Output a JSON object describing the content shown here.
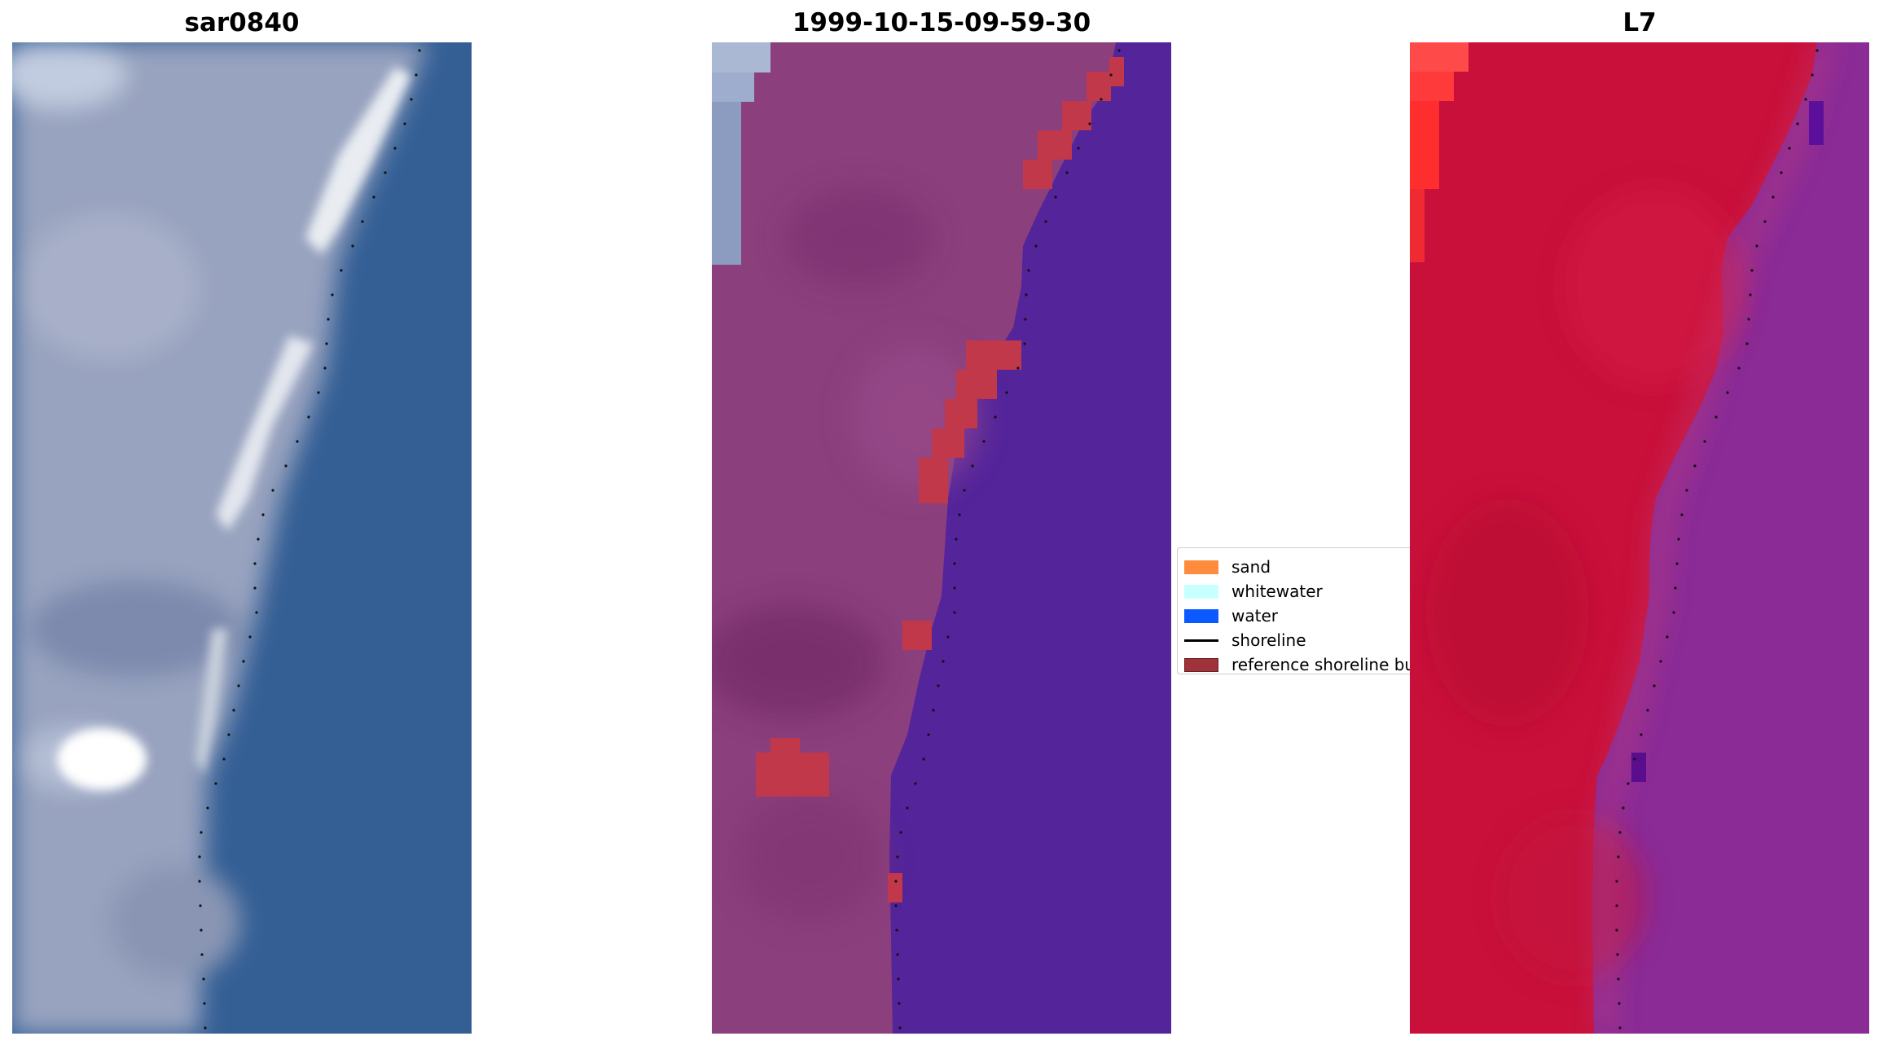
{
  "panels": [
    {
      "title": "sar0840"
    },
    {
      "title": "1999-10-15-09-59-30"
    },
    {
      "title": "L7"
    }
  ],
  "legend": {
    "items": [
      {
        "label": "sand",
        "color": "#ff8c3c",
        "kind": "patch"
      },
      {
        "label": "whitewater",
        "color": "#c8ffff",
        "kind": "patch"
      },
      {
        "label": "water",
        "color": "#0a5aff",
        "kind": "patch"
      },
      {
        "label": "shoreline",
        "color": "#000000",
        "kind": "line"
      },
      {
        "label": "reference shoreline buffer",
        "color": "#a0323a",
        "kind": "patch"
      }
    ]
  },
  "colors": {
    "rgb_water": "#345f95",
    "rgb_land": "#9aa6c2",
    "classified_water": "#53249a",
    "classified_land": "#8b3f7c",
    "buffer_overlay": "#c0384a",
    "l7_land": "#c8103a",
    "l7_water": "#8a2b96"
  }
}
